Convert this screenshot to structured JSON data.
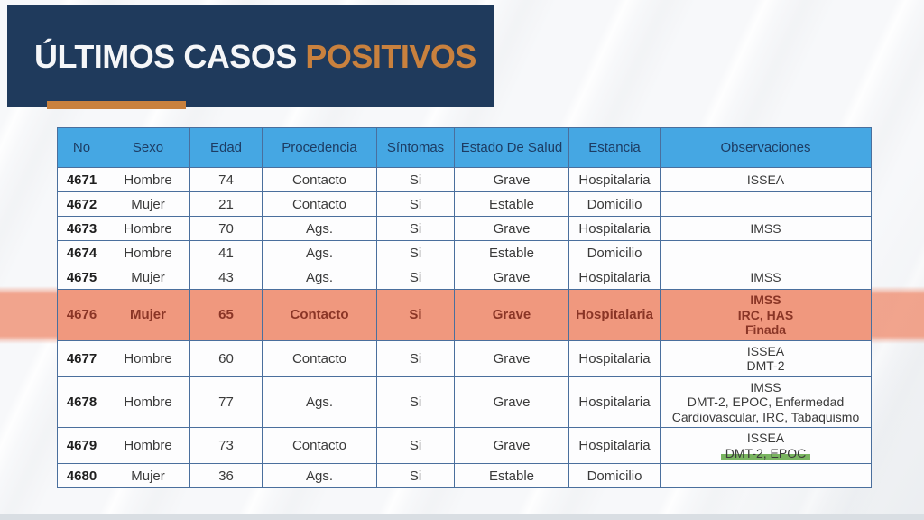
{
  "slide": {
    "title_part1": "ÚLTIMOS CASOS",
    "title_part2": "POSITIVOS",
    "colors": {
      "banner_navy": "#1f3a5c",
      "accent_orange": "#c9813e",
      "title_white": "#f5f6f8",
      "header_blue": "#45a7e3",
      "header_text": "#1d3c63",
      "border_blue": "#4a6f9d",
      "highlight_salmon": "#f0987e",
      "highlight_text": "#8a3526",
      "marker_green": "#62a744"
    }
  },
  "table": {
    "columns": [
      "No",
      "Sexo",
      "Edad",
      "Procedencia",
      "Síntomas",
      "Estado De Salud",
      "Estancia",
      "Observaciones"
    ],
    "rows": [
      {
        "no": "4671",
        "sexo": "Hombre",
        "edad": "74",
        "procedencia": "Contacto",
        "sintomas": "Si",
        "estado": "Grave",
        "estancia": "Hospitalaria",
        "observaciones": [
          "ISSEA"
        ],
        "highlight": false,
        "marker_line": -1
      },
      {
        "no": "4672",
        "sexo": "Mujer",
        "edad": "21",
        "procedencia": "Contacto",
        "sintomas": "Si",
        "estado": "Estable",
        "estancia": "Domicilio",
        "observaciones": [],
        "highlight": false,
        "marker_line": -1
      },
      {
        "no": "4673",
        "sexo": "Hombre",
        "edad": "70",
        "procedencia": "Ags.",
        "sintomas": "Si",
        "estado": "Grave",
        "estancia": "Hospitalaria",
        "observaciones": [
          "IMSS"
        ],
        "highlight": false,
        "marker_line": -1
      },
      {
        "no": "4674",
        "sexo": "Hombre",
        "edad": "41",
        "procedencia": "Ags.",
        "sintomas": "Si",
        "estado": "Estable",
        "estancia": "Domicilio",
        "observaciones": [],
        "highlight": false,
        "marker_line": -1
      },
      {
        "no": "4675",
        "sexo": "Mujer",
        "edad": "43",
        "procedencia": "Ags.",
        "sintomas": "Si",
        "estado": "Grave",
        "estancia": "Hospitalaria",
        "observaciones": [
          "IMSS"
        ],
        "highlight": false,
        "marker_line": -1
      },
      {
        "no": "4676",
        "sexo": "Mujer",
        "edad": "65",
        "procedencia": "Contacto",
        "sintomas": "Si",
        "estado": "Grave",
        "estancia": "Hospitalaria",
        "observaciones": [
          "IMSS",
          "IRC, HAS",
          "Finada"
        ],
        "highlight": true,
        "marker_line": -1
      },
      {
        "no": "4677",
        "sexo": "Hombre",
        "edad": "60",
        "procedencia": "Contacto",
        "sintomas": "Si",
        "estado": "Grave",
        "estancia": "Hospitalaria",
        "observaciones": [
          "ISSEA",
          "DMT-2"
        ],
        "highlight": false,
        "marker_line": -1
      },
      {
        "no": "4678",
        "sexo": "Hombre",
        "edad": "77",
        "procedencia": "Ags.",
        "sintomas": "Si",
        "estado": "Grave",
        "estancia": "Hospitalaria",
        "observaciones": [
          "IMSS",
          "DMT-2, EPOC, Enfermedad",
          "Cardiovascular, IRC, Tabaquismo"
        ],
        "highlight": false,
        "marker_line": -1
      },
      {
        "no": "4679",
        "sexo": "Hombre",
        "edad": "73",
        "procedencia": "Contacto",
        "sintomas": "Si",
        "estado": "Grave",
        "estancia": "Hospitalaria",
        "observaciones": [
          "ISSEA",
          "DMT-2, EPOC"
        ],
        "highlight": false,
        "marker_line": 1
      },
      {
        "no": "4680",
        "sexo": "Mujer",
        "edad": "36",
        "procedencia": "Ags.",
        "sintomas": "Si",
        "estado": "Estable",
        "estancia": "Domicilio",
        "observaciones": [],
        "highlight": false,
        "marker_line": -1
      }
    ]
  }
}
